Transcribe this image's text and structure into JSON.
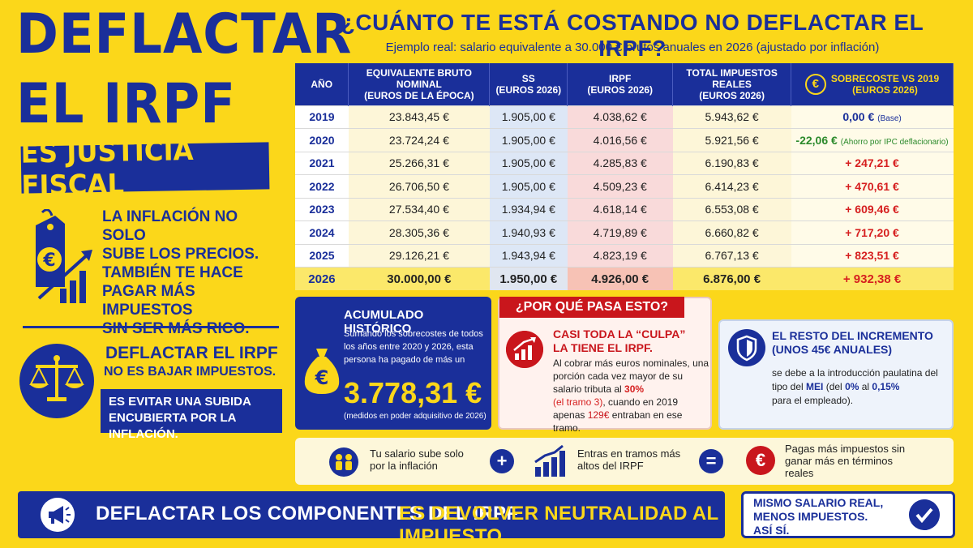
{
  "left": {
    "title_line1": "DEFLACTAR",
    "title_line2": "EL IRPF",
    "banner": "ES JUSTICIA FISCAL",
    "inflation_text": [
      "LA INFLACIÓN NO SOLO",
      "SUBE LOS PRECIOS.",
      "TAMBIÉN TE HACE",
      "PAGAR MÁS IMPUESTOS",
      "SIN SER MÁS RICO."
    ],
    "deflactar_title": "DEFLACTAR EL IRPF",
    "deflactar_sub": "NO ES BAJAR IMPUESTOS.",
    "evitar_line1": "ES EVITAR UNA SUBIDA",
    "evitar_line2": "ENCUBIERTA POR LA INFLACIÓN."
  },
  "header": {
    "title": "¿CUÁNTO TE ESTÁ COSTANDO NO DEFLACTAR EL IRPF?",
    "subtitle": "Ejemplo real: salario equivalente a 30.000 € brutos anuales en 2026 (ajustado por inflación)"
  },
  "table": {
    "headers": [
      {
        "main": "AÑO",
        "sub": ""
      },
      {
        "main": "EQUIVALENTE BRUTO NOMINAL",
        "sub": "(EUROS DE LA ÉPOCA)"
      },
      {
        "main": "SS",
        "sub": "(EUROS 2026)"
      },
      {
        "main": "IRPF",
        "sub": "(EUROS 2026)"
      },
      {
        "main": "TOTAL IMPUESTOS REALES",
        "sub": "(EUROS 2026)"
      },
      {
        "main": "SOBRECOSTE VS 2019",
        "sub": "(EUROS 2026)"
      }
    ],
    "rows": [
      {
        "year": "2019",
        "nominal": "23.843,45 €",
        "ss": "1.905,00 €",
        "irpf": "4.038,62 €",
        "total": "5.943,62 €",
        "sobre": "0,00 €",
        "note": "(Base)",
        "kind": "blue"
      },
      {
        "year": "2020",
        "nominal": "23.724,24 €",
        "ss": "1.905,00 €",
        "irpf": "4.016,56 €",
        "total": "5.921,56 €",
        "sobre": "-22,06 €",
        "note": "(Ahorro por IPC deflacionario)",
        "kind": "green"
      },
      {
        "year": "2021",
        "nominal": "25.266,31 €",
        "ss": "1.905,00 €",
        "irpf": "4.285,83 €",
        "total": "6.190,83 €",
        "sobre": "+ 247,21 €",
        "note": "",
        "kind": "red"
      },
      {
        "year": "2022",
        "nominal": "26.706,50 €",
        "ss": "1.905,00 €",
        "irpf": "4.509,23 €",
        "total": "6.414,23 €",
        "sobre": "+ 470,61 €",
        "note": "",
        "kind": "red"
      },
      {
        "year": "2023",
        "nominal": "27.534,40 €",
        "ss": "1.934,94 €",
        "irpf": "4.618,14 €",
        "total": "6.553,08 €",
        "sobre": "+ 609,46 €",
        "note": "",
        "kind": "red"
      },
      {
        "year": "2024",
        "nominal": "28.305,36 €",
        "ss": "1.940,93 €",
        "irpf": "4.719,89 €",
        "total": "6.660,82 €",
        "sobre": "+ 717,20 €",
        "note": "",
        "kind": "red"
      },
      {
        "year": "2025",
        "nominal": "29.126,21 €",
        "ss": "1.943,94 €",
        "irpf": "4.823,19 €",
        "total": "6.767,13 €",
        "sobre": "+ 823,51 €",
        "note": "",
        "kind": "red"
      },
      {
        "year": "2026",
        "nominal": "30.000,00 €",
        "ss": "1.950,00 €",
        "irpf": "4.926,00 €",
        "total": "6.876,00 €",
        "sobre": "+ 932,38 €",
        "note": "",
        "kind": "red"
      }
    ]
  },
  "acumulado": {
    "title": "ACUMULADO HISTÓRICO",
    "body": "Sumando los sobrecostes de todos los años entre 2020 y 2026, esta persona ha pagado de más un",
    "value": "3.778,31 €",
    "note": "(medidos en poder adquisitivo de 2026)"
  },
  "why": {
    "tag": "¿POR QUÉ PASA ESTO?",
    "title1": "CASI TODA LA “CULPA”",
    "title2": "LA TIENE EL IRPF.",
    "body1": "Al cobrar más euros nominales, una porción cada vez mayor de su salario tributa al ",
    "pct": "30%",
    "tramo": "(el tramo 3)",
    "body2": ", cuando en 2019 apenas ",
    "amount": "129€",
    "body3": " entraban en ese tramo."
  },
  "rest": {
    "title1": "EL RESTO DEL INCREMENTO",
    "title2": "(UNOS 45€ ANUALES)",
    "body1": "se debe a la introducción paulatina del tipo del ",
    "mei": "MEI",
    "body2": " (del ",
    "p0": "0%",
    "body3": " al ",
    "p1": "0,15%",
    "body4": " para el empleado)."
  },
  "equation": {
    "a": "Tu salario sube solo por la inflación",
    "plus": "+",
    "b": "Entras en tramos más altos del IRPF",
    "eq": "=",
    "c": "Pagas más impuestos sin ganar más en términos reales"
  },
  "bottom": {
    "a": "DEFLACTAR LOS COMPONENTES DEL IRPF",
    "b": "ES DEVOLVER NEUTRALIDAD AL IMPUESTO.",
    "box1": "MISMO SALARIO REAL,",
    "box2": "MENOS IMPUESTOS.",
    "box3": "ASÍ SÍ."
  },
  "colors": {
    "navy": "#1a2f9a",
    "yellow": "#fbd71a",
    "red": "#c9161c",
    "green": "#2c8a2c"
  }
}
